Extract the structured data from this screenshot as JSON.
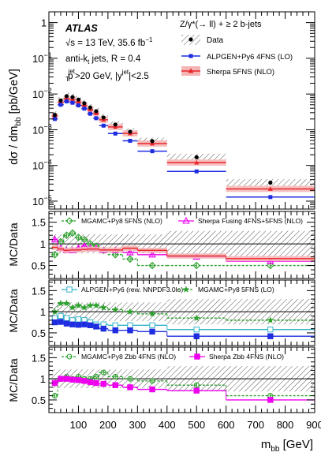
{
  "chart_data": [
    {
      "type": "scatter",
      "log_y": true,
      "xlim": [
        0,
        900
      ],
      "ylim": [
        6e-06,
        2
      ],
      "ylabel": "dσ / dm",
      "ylabel_sub": "bb",
      "ylabel_unit": "[pb/GeV]",
      "y_ticks": [
        {
          "v": 1,
          "base": "1",
          "exp": ""
        },
        {
          "v": 0.1,
          "base": "10",
          "exp": "−1"
        },
        {
          "v": 0.01,
          "base": "10",
          "exp": "−2"
        },
        {
          "v": 0.001,
          "base": "10",
          "exp": "−3"
        },
        {
          "v": 0.0001,
          "base": "10",
          "exp": "−4"
        },
        {
          "v": 1e-05,
          "base": "10",
          "exp": "−5"
        }
      ],
      "atlas_label": "ATLAS",
      "energy_text": "√s = 13 TeV, 35.6 fb",
      "energy_sup": "−1",
      "jet_text": "anti-k",
      "jet_sub": "t",
      "jet_text2": " jets, R = 0.4",
      "cut_pt": "p",
      "cut_pt_sup": "jet",
      "cut_pt_sub": "T",
      "cut_pt_rest": ">20 GeV, |y",
      "cut_y_sup": "jet",
      "cut_y_rest": "|<2.5",
      "process_label": "Z/γ*(→ ll) + ≥ 2 b-jets",
      "bins": [
        [
          10,
          30
        ],
        [
          30,
          50
        ],
        [
          50,
          70
        ],
        [
          70,
          90
        ],
        [
          90,
          110
        ],
        [
          110,
          130
        ],
        [
          130,
          150
        ],
        [
          150,
          170
        ],
        [
          170,
          200
        ],
        [
          200,
          250
        ],
        [
          250,
          300
        ],
        [
          300,
          400
        ],
        [
          400,
          600
        ],
        [
          600,
          900
        ]
      ],
      "data": [
        0.0026,
        0.0066,
        0.0087,
        0.0082,
        0.007,
        0.0055,
        0.0042,
        0.0033,
        0.0022,
        0.0014,
        0.00088,
        0.00048,
        0.00017,
        3.3e-05
      ],
      "series": [
        {
          "name": "Data",
          "style": "points",
          "color": "#000000"
        },
        {
          "name": "ALPGEN+Py6 4FNS (LO)",
          "color": "#1f2de0",
          "values": [
            0.002,
            0.005,
            0.0062,
            0.0057,
            0.0048,
            0.0039,
            0.0028,
            0.0021,
            0.0013,
            0.00078,
            0.00049,
            0.00025,
            6.8e-05,
            1.3e-05
          ]
        },
        {
          "name": "Sherpa 5FNS (NLO)",
          "color": "#e8252b",
          "band_color": "#f5b5b5",
          "values": [
            0.0024,
            0.0058,
            0.0074,
            0.007,
            0.006,
            0.0048,
            0.0037,
            0.0029,
            0.0019,
            0.0012,
            0.00079,
            0.00041,
            0.00012,
            2.2e-05
          ]
        }
      ]
    },
    {
      "type": "scatter",
      "ylim": [
        0.2,
        1.75
      ],
      "ylabel": "MC/Data",
      "y_ticks": [
        0.5,
        1,
        1.5
      ],
      "series": [
        {
          "name": "MGAMC+Py8 5FNS (NLO)",
          "color": "#2ca02c",
          "style": "dashed-open-diamond",
          "values": [
            0.75,
            1.05,
            1.2,
            1.25,
            1.15,
            1.1,
            1.0,
            0.95,
            0.85,
            0.75,
            0.65,
            0.5,
            0.5,
            0.5
          ]
        },
        {
          "name": "Sherpa Fusing 4FNS+5FNS (NLO)",
          "color": "#ee00ee",
          "style": "solid-open-triangle",
          "values": [
            1.1,
            0.9,
            0.85,
            0.85,
            0.9,
            0.95,
            0.9,
            0.9,
            0.85,
            0.85,
            0.8,
            0.75,
            0.7,
            0.6
          ]
        },
        {
          "name": "Sherpa 5FNS (NLO)",
          "color": "#e8252b",
          "style": "solid-band",
          "values": [
            0.92,
            0.88,
            0.85,
            0.86,
            0.86,
            0.87,
            0.88,
            0.88,
            0.86,
            0.86,
            0.9,
            0.85,
            0.72,
            0.66
          ]
        }
      ]
    },
    {
      "type": "scatter",
      "ylim": [
        0.2,
        1.75
      ],
      "ylabel": "MC/Data",
      "y_ticks": [
        0.5,
        1,
        1.5
      ],
      "series": [
        {
          "name": "ALPGEN+Py6 (rew. NNPDF3.0lo)",
          "color": "#33b5c8",
          "style": "solid-open-square",
          "values": [
            0.85,
            0.9,
            0.85,
            0.8,
            0.82,
            0.8,
            0.75,
            0.7,
            0.7,
            0.68,
            0.68,
            0.68,
            0.58,
            0.58
          ]
        },
        {
          "name": "MGAMC+Py8 5FNS (LO)",
          "color": "#2ca02c",
          "style": "dashed-star",
          "values": [
            1.0,
            1.2,
            1.2,
            1.1,
            1.15,
            1.1,
            1.15,
            1.15,
            1.1,
            1.05,
            1.0,
            0.95,
            0.85,
            0.8
          ]
        },
        {
          "name": "ALPGEN+Py6 4FNS (LO)",
          "color": "#1f2de0",
          "style": "solid-square",
          "values": [
            0.75,
            0.76,
            0.72,
            0.7,
            0.69,
            0.7,
            0.68,
            0.65,
            0.6,
            0.56,
            0.56,
            0.53,
            0.42,
            0.42
          ]
        }
      ]
    },
    {
      "type": "scatter",
      "ylim": [
        0.2,
        1.75
      ],
      "ylabel": "MC/Data",
      "xlabel": "m",
      "xlabel_sub": "bb",
      "xlabel_unit": "[GeV]",
      "x_ticks": [
        100,
        200,
        300,
        400,
        500,
        600,
        700,
        800,
        900
      ],
      "y_ticks": [
        0.5,
        1,
        1.5
      ],
      "series": [
        {
          "name": "MGAMC+Py8 Zbb 4FNS (NLO)",
          "color": "#2ca02c",
          "style": "dashed-open-circle",
          "values": [
            0.6,
            1.0,
            1.05,
            1.0,
            1.05,
            1.0,
            1.0,
            1.05,
            1.15,
            1.05,
            1.0,
            0.95,
            0.85,
            0.6
          ]
        },
        {
          "name": "Sherpa Zbb 4FNS (NLO)",
          "color": "#ee00ee",
          "style": "solid-square",
          "values": [
            0.9,
            1.0,
            1.0,
            0.98,
            0.97,
            0.95,
            0.92,
            0.9,
            0.88,
            0.85,
            0.8,
            0.75,
            0.72,
            0.5
          ]
        }
      ]
    }
  ]
}
